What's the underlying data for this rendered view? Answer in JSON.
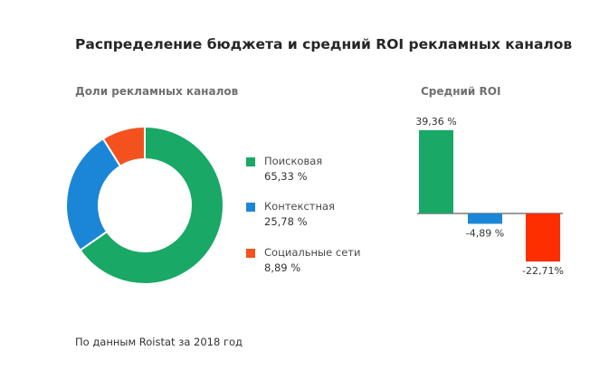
{
  "title": "Распределение бюджета и средний ROI рекламных каналов",
  "source": "По данным Roistat за 2018 год",
  "chart_data": [
    {
      "type": "pie",
      "subtitle": "Доли рекламных каналов",
      "donut": true,
      "categories": [
        "Поисковая",
        "Контекстная",
        "Социальные сети"
      ],
      "values": [
        65.33,
        25.78,
        8.89
      ],
      "value_labels": [
        "65,33 %",
        "25,78 %",
        "8,89 %"
      ],
      "colors": [
        "#19a865",
        "#1c86d6",
        "#f3521f"
      ],
      "legend": "right"
    },
    {
      "type": "bar",
      "subtitle": "Средний ROI",
      "values": [
        39.36,
        -4.89,
        -22.71
      ],
      "value_labels": [
        "39,36 %",
        "-4,89 %",
        "-22,71%"
      ],
      "colors": [
        "#19a865",
        "#1c86d6",
        "#ff2e00"
      ],
      "ylim": [
        -22.71,
        39.36
      ],
      "grid": false
    }
  ]
}
